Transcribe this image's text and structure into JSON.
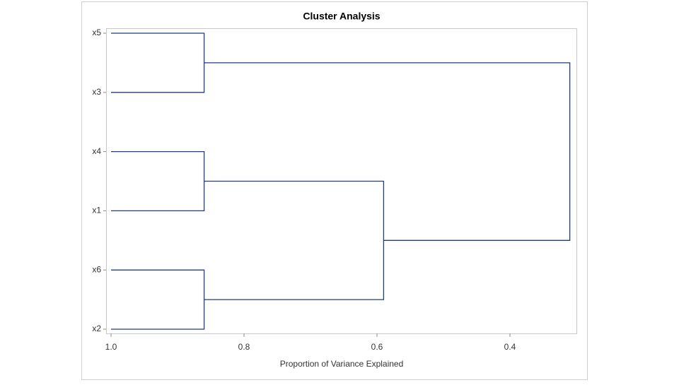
{
  "chart_data": {
    "type": "dendrogram",
    "title": "Cluster Analysis",
    "x_label": "Proportion of Variance Explained",
    "leaves": [
      "x5",
      "x3",
      "x4",
      "x1",
      "x6",
      "x2"
    ],
    "merges": [
      {
        "children": [
          0,
          1
        ],
        "height": 0.86
      },
      {
        "children": [
          2,
          3
        ],
        "height": 0.86
      },
      {
        "children": [
          4,
          5
        ],
        "height": 0.86
      },
      {
        "children": [
          7,
          8
        ],
        "height": 0.59
      },
      {
        "children": [
          6,
          9
        ],
        "height": 0.31
      }
    ],
    "color": "#1f3f7a",
    "xlim": [
      1.0,
      0.3
    ],
    "xticks": [
      {
        "value": 1.0,
        "label": "1.0"
      },
      0.8,
      0.6,
      0.4
    ]
  }
}
